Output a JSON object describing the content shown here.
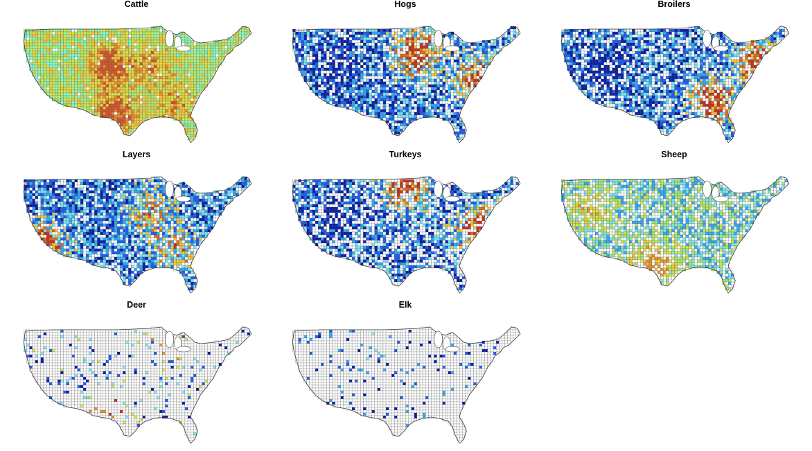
{
  "figure": {
    "panels": [
      {
        "id": "cattle",
        "title": "Cattle",
        "fill_coverage": 0.97,
        "palette": [
          "#7fffd4",
          "#a6e87a",
          "#d8e64a",
          "#f3c53c",
          "#e88f2e",
          "#d5562a"
        ],
        "hotspots": [
          {
            "region": "Great Plains",
            "level": "high"
          },
          {
            "region": "Texas",
            "level": "high"
          },
          {
            "region": "Midwest",
            "level": "medium"
          },
          {
            "region": "Southeast",
            "level": "medium"
          }
        ]
      },
      {
        "id": "hogs",
        "title": "Hogs",
        "fill_coverage": 0.72,
        "palette": [
          "#0a1ea8",
          "#1e5ef0",
          "#36a8f5",
          "#7ee6f0",
          "#f0c840",
          "#e06a2a",
          "#c8321e"
        ],
        "hotspots": [
          {
            "region": "Iowa / Corn Belt",
            "level": "high"
          },
          {
            "region": "North Carolina",
            "level": "high"
          },
          {
            "region": "Mountain West",
            "level": "low"
          }
        ]
      },
      {
        "id": "broilers",
        "title": "Broilers",
        "fill_coverage": 0.7,
        "palette": [
          "#0a1ea8",
          "#1e5ef0",
          "#36a8f5",
          "#7ee6f0",
          "#f0c840",
          "#e06a2a",
          "#c8321e"
        ],
        "hotspots": [
          {
            "region": "Southeast",
            "level": "high"
          },
          {
            "region": "Delmarva",
            "level": "high"
          },
          {
            "region": "Mountain West",
            "level": "low"
          }
        ]
      },
      {
        "id": "layers",
        "title": "Layers",
        "fill_coverage": 0.8,
        "palette": [
          "#0a1ea8",
          "#1e5ef0",
          "#36a8f5",
          "#7ee6f0",
          "#f0c840",
          "#e06a2a",
          "#c8321e"
        ],
        "hotspots": [
          {
            "region": "Southern California",
            "level": "high"
          },
          {
            "region": "Midwest",
            "level": "medium"
          },
          {
            "region": "Southeast",
            "level": "medium"
          }
        ]
      },
      {
        "id": "turkeys",
        "title": "Turkeys",
        "fill_coverage": 0.62,
        "palette": [
          "#0a1ea8",
          "#1e5ef0",
          "#36a8f5",
          "#7ee6f0",
          "#f0c840",
          "#e06a2a",
          "#c8321e"
        ],
        "hotspots": [
          {
            "region": "Minnesota",
            "level": "high"
          },
          {
            "region": "North Carolina",
            "level": "high"
          },
          {
            "region": "Mountain West",
            "level": "low"
          }
        ]
      },
      {
        "id": "sheep",
        "title": "Sheep",
        "fill_coverage": 0.68,
        "palette": [
          "#36a8f5",
          "#7ee6f0",
          "#a6e87a",
          "#d8e64a",
          "#f0c840",
          "#e88f2e"
        ],
        "hotspots": [
          {
            "region": "Texas",
            "level": "high"
          },
          {
            "region": "West",
            "level": "medium"
          }
        ]
      },
      {
        "id": "deer",
        "title": "Deer",
        "fill_coverage": 0.1,
        "palette": [
          "#0a1ea8",
          "#1e5ef0",
          "#7ee6f0",
          "#d8e64a",
          "#e88f2e",
          "#c8321e"
        ],
        "hotspots": [
          {
            "region": "Texas Hill Country",
            "level": "high"
          },
          {
            "region": "Wisconsin / Michigan",
            "level": "medium"
          }
        ]
      },
      {
        "id": "elk",
        "title": "Elk",
        "fill_coverage": 0.07,
        "palette": [
          "#0a1ea8",
          "#1e5ef0",
          "#36a8f5",
          "#7ee6f0",
          "#d8e64a"
        ],
        "hotspots": [
          {
            "region": "Northern Plains",
            "level": "medium"
          },
          {
            "region": "Texas",
            "level": "low"
          }
        ]
      }
    ]
  }
}
